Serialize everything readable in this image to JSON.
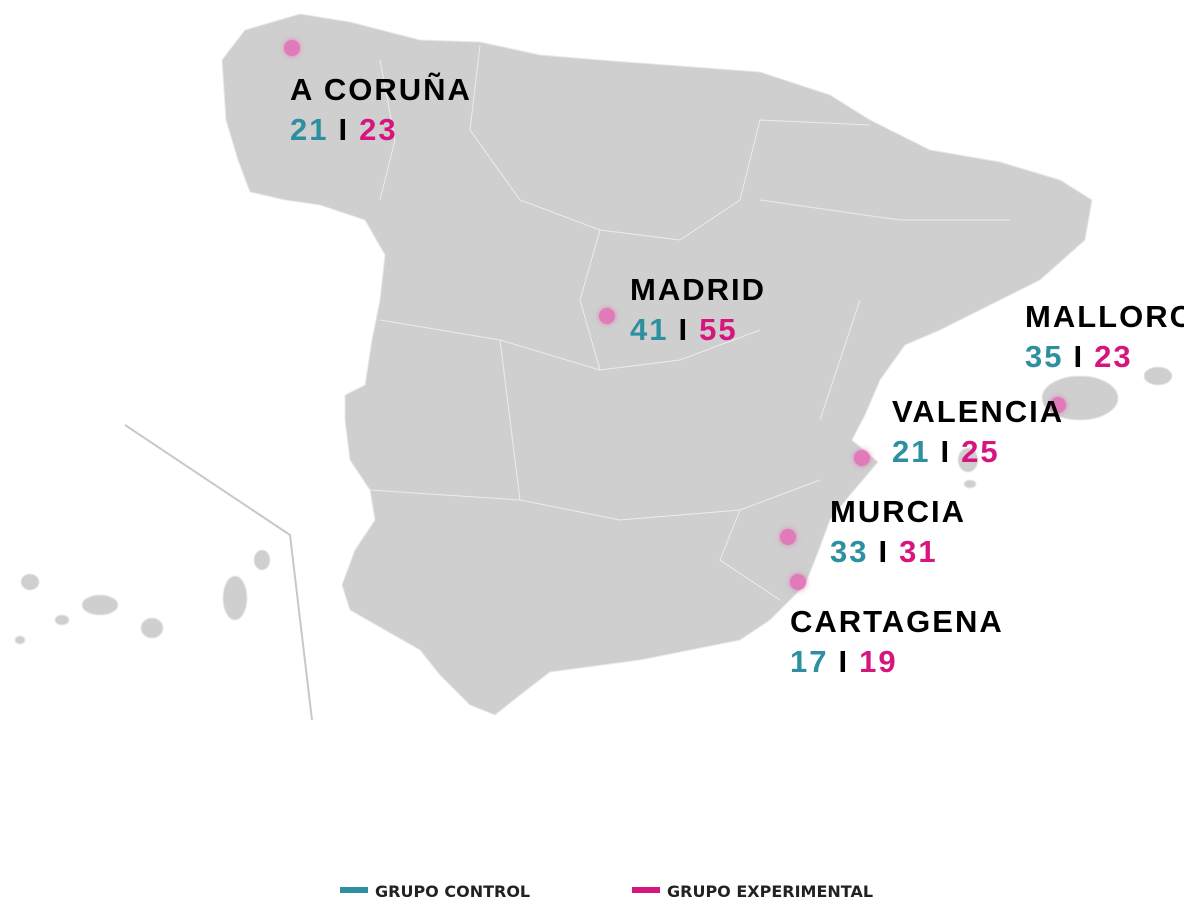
{
  "map": {
    "cities": [
      {
        "name": "A CORUÑA",
        "control": 21,
        "experimental": 23
      },
      {
        "name": "MADRID",
        "control": 41,
        "experimental": 55
      },
      {
        "name": "MALLORCA",
        "control": 35,
        "experimental": 23
      },
      {
        "name": "VALENCIA",
        "control": 21,
        "experimental": 25
      },
      {
        "name": "MURCIA",
        "control": 33,
        "experimental": 31
      },
      {
        "name": "CARTAGENA",
        "control": 17,
        "experimental": 19
      }
    ],
    "separator": "I",
    "control_color": "#2e8fa0",
    "experimental_color": "#d6157f",
    "legend": [
      {
        "name": "GRUPO CONTROL",
        "color": "#2e8fa0"
      },
      {
        "name": "GRUPO EXPERIMENTAL",
        "color": "#d6157f"
      }
    ]
  }
}
